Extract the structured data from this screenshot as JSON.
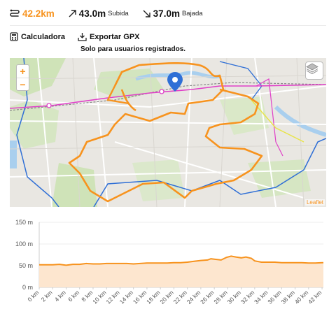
{
  "stats": {
    "distance": "42.2km",
    "ascent_value": "43.0m",
    "ascent_label": "Subida",
    "descent_value": "37.0m",
    "descent_label": "Bajada"
  },
  "tools": {
    "calculator": "Calculadora",
    "export": "Exportar GPX",
    "note": "Solo para usuarios registrados."
  },
  "map": {
    "zoom_in": "+",
    "zoom_out": "−",
    "attribution": "Leaflet",
    "route_color": "#f7931e"
  },
  "chart_data": {
    "type": "area",
    "y_ticks": [
      "150 m",
      "100 m",
      "50 m",
      "0 m"
    ],
    "y_values": [
      150,
      100,
      50,
      0
    ],
    "ylim": [
      0,
      150
    ],
    "x_ticks": [
      "0 km",
      "2 km",
      "4 km",
      "6 km",
      "8 km",
      "10 km",
      "12 km",
      "14 km",
      "16 km",
      "18 km",
      "20 km",
      "22 km",
      "24 km",
      "26 km",
      "28 km",
      "30 km",
      "32 km",
      "34 km",
      "36 km",
      "38 km",
      "40 km",
      "42 km"
    ],
    "xlim": [
      0,
      42.2
    ],
    "profile": [
      [
        0,
        52
      ],
      [
        1,
        52
      ],
      [
        2,
        52
      ],
      [
        3,
        53
      ],
      [
        4,
        51
      ],
      [
        5,
        53
      ],
      [
        6,
        53
      ],
      [
        7,
        55
      ],
      [
        8,
        54
      ],
      [
        9,
        54
      ],
      [
        10,
        55
      ],
      [
        11,
        55
      ],
      [
        12,
        55
      ],
      [
        13,
        55
      ],
      [
        14,
        54
      ],
      [
        15,
        55
      ],
      [
        16,
        56
      ],
      [
        17,
        56
      ],
      [
        18,
        56
      ],
      [
        19,
        56
      ],
      [
        20,
        57
      ],
      [
        21,
        57
      ],
      [
        22,
        58
      ],
      [
        23,
        60
      ],
      [
        24,
        62
      ],
      [
        25,
        63
      ],
      [
        25.5,
        66
      ],
      [
        26,
        65
      ],
      [
        27,
        63
      ],
      [
        27.8,
        69
      ],
      [
        28.5,
        72
      ],
      [
        29.2,
        70
      ],
      [
        30,
        68
      ],
      [
        30.7,
        70
      ],
      [
        31.5,
        67
      ],
      [
        32,
        61
      ],
      [
        33,
        58
      ],
      [
        34,
        58
      ],
      [
        35,
        58
      ],
      [
        36,
        57
      ],
      [
        37,
        57
      ],
      [
        38,
        57
      ],
      [
        39,
        57
      ],
      [
        40,
        56
      ],
      [
        41,
        56
      ],
      [
        42,
        57
      ],
      [
        42.2,
        57
      ]
    ],
    "line_color": "#f7931e",
    "fill_color": "#fde6cf"
  }
}
